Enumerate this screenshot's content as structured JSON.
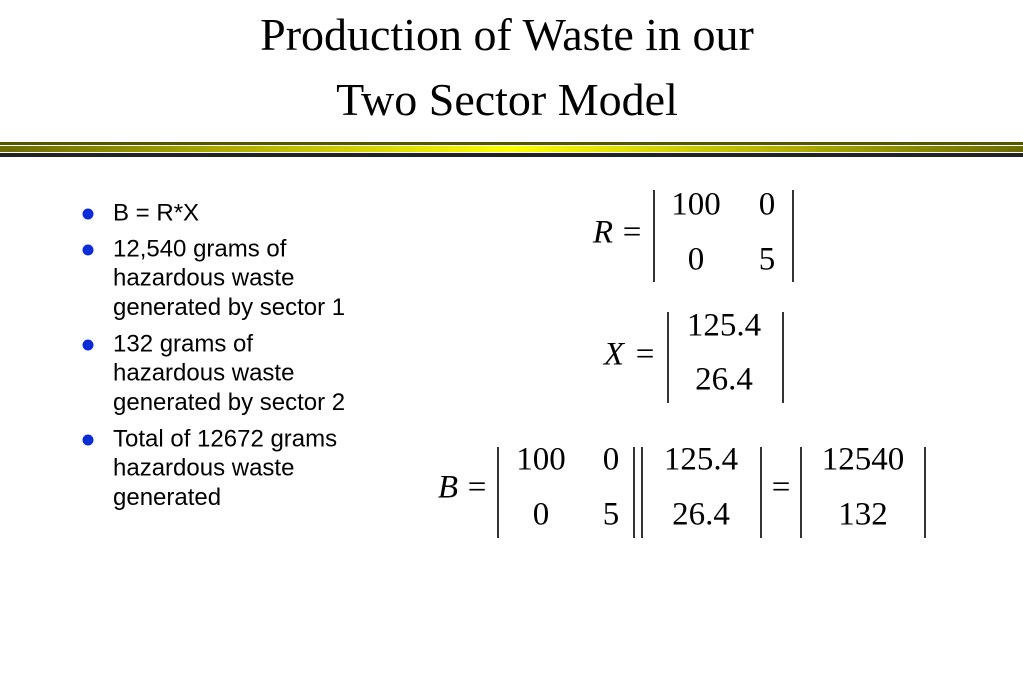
{
  "title": [
    "Production of Waste in our",
    "Two Sector Model"
  ],
  "bullets": [
    [
      "B = R*X"
    ],
    [
      "12,540 grams of",
      "hazardous waste",
      "generated by sector 1"
    ],
    [
      "132 grams of",
      "hazardous waste",
      "generated by sector 2"
    ],
    [
      "Total of 12672 grams",
      "hazardous waste",
      "generated"
    ]
  ],
  "equations": [
    {
      "lhs": "R",
      "equals": "=",
      "matrix": [
        [
          "100",
          "0"
        ],
        [
          "0",
          "5"
        ]
      ]
    },
    {
      "lhs": "X",
      "equals": "=",
      "matrix": [
        [
          "125.4"
        ],
        [
          "26.4"
        ]
      ]
    },
    {
      "lhs": "B",
      "equals": "=",
      "factors": [
        [
          [
            "100",
            "0"
          ],
          [
            "0",
            "5"
          ]
        ],
        [
          [
            "125.4"
          ],
          [
            "26.4"
          ]
        ]
      ],
      "result_equals": "=",
      "result": [
        [
          "12540"
        ],
        [
          "132"
        ]
      ]
    }
  ]
}
